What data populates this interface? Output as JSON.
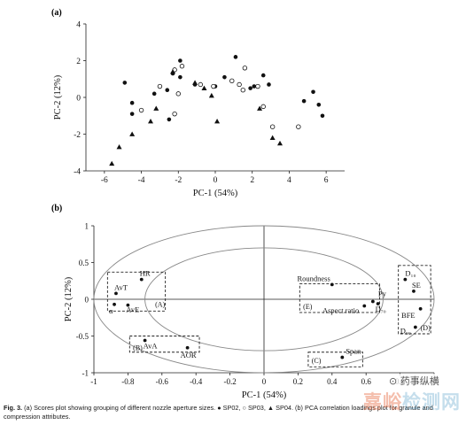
{
  "chart_data": [
    {
      "panel": "(a)",
      "type": "scatter",
      "xlabel": "PC-1 (54%)",
      "ylabel": "PC-2 (12%)",
      "xlim": [
        -7,
        7
      ],
      "ylim": [
        -4,
        4
      ],
      "xticks": [
        -6,
        -4,
        -2,
        0,
        2,
        4,
        6
      ],
      "yticks": [
        -4,
        -2,
        0,
        2,
        4
      ],
      "grid": false,
      "series": [
        {
          "name": "SP02",
          "marker": "filled-circle",
          "points": [
            [
              -4.9,
              0.8
            ],
            [
              -4.5,
              -0.9
            ],
            [
              -4.5,
              -0.3
            ],
            [
              -3.3,
              0.2
            ],
            [
              -2.6,
              0.4
            ],
            [
              -2.3,
              1.3
            ],
            [
              -2.5,
              -1.2
            ],
            [
              -1.9,
              2.0
            ],
            [
              -1.9,
              1.1
            ],
            [
              -1.1,
              0.7
            ],
            [
              0.0,
              0.6
            ],
            [
              0.5,
              1.1
            ],
            [
              1.1,
              2.2
            ],
            [
              1.9,
              0.5
            ],
            [
              2.1,
              0.6
            ],
            [
              2.6,
              1.2
            ],
            [
              2.9,
              0.7
            ],
            [
              4.8,
              -0.2
            ],
            [
              5.3,
              0.3
            ],
            [
              5.6,
              -0.4
            ],
            [
              5.8,
              -1.0
            ]
          ]
        },
        {
          "name": "SP03",
          "marker": "open-circle",
          "points": [
            [
              -4.0,
              -0.7
            ],
            [
              -3.0,
              0.6
            ],
            [
              -2.2,
              1.5
            ],
            [
              -1.8,
              1.7
            ],
            [
              -2.0,
              0.2
            ],
            [
              -2.2,
              -0.9
            ],
            [
              -0.8,
              0.7
            ],
            [
              -0.1,
              0.6
            ],
            [
              0.9,
              0.9
            ],
            [
              1.3,
              0.7
            ],
            [
              1.5,
              0.4
            ],
            [
              1.6,
              1.6
            ],
            [
              2.3,
              0.6
            ],
            [
              2.6,
              -0.5
            ],
            [
              3.1,
              -1.6
            ],
            [
              4.5,
              -1.6
            ]
          ]
        },
        {
          "name": "SP04",
          "marker": "filled-triangle",
          "points": [
            [
              -5.6,
              -3.6
            ],
            [
              -5.2,
              -2.7
            ],
            [
              -4.5,
              -2.0
            ],
            [
              -3.5,
              -1.3
            ],
            [
              -3.2,
              -0.6
            ],
            [
              -2.3,
              1.4
            ],
            [
              -1.1,
              0.8
            ],
            [
              -0.6,
              0.5
            ],
            [
              -0.2,
              0.1
            ],
            [
              0.1,
              -1.3
            ],
            [
              2.4,
              -0.6
            ],
            [
              3.1,
              -2.2
            ],
            [
              3.5,
              -2.5
            ]
          ]
        }
      ]
    },
    {
      "panel": "(b)",
      "type": "scatter",
      "xlabel": "PC-1 (54%)",
      "ylabel": "PC-2 (12%)",
      "xlim": [
        -1,
        1
      ],
      "ylim": [
        -1,
        1
      ],
      "xticks": [
        -1,
        -0.8,
        -0.6,
        -0.4,
        -0.2,
        0,
        0.2,
        0.4,
        0.6,
        0.8,
        1
      ],
      "yticks": [
        -1,
        -0.5,
        0,
        0.5,
        1
      ],
      "grid": false,
      "points": [
        {
          "label": "HR",
          "x": -0.72,
          "y": 0.27
        },
        {
          "label": "AvT",
          "x": -0.87,
          "y": 0.08
        },
        {
          "label": "α",
          "x": -0.88,
          "y": -0.07
        },
        {
          "label": "AvE",
          "x": -0.8,
          "y": -0.08
        },
        {
          "label": "AvA",
          "x": -0.7,
          "y": -0.56
        },
        {
          "label": "AOR",
          "x": -0.45,
          "y": -0.66
        },
        {
          "label": "Roundness",
          "x": 0.4,
          "y": 0.2
        },
        {
          "label": "Py",
          "x": 0.64,
          "y": -0.03
        },
        {
          "label": "Aspect ratio",
          "x": 0.59,
          "y": -0.09
        },
        {
          "label": "D₇₀",
          "x": 0.67,
          "y": -0.06
        },
        {
          "label": "D₁₀",
          "x": 0.83,
          "y": 0.27
        },
        {
          "label": "SE",
          "x": 0.88,
          "y": 0.11
        },
        {
          "label": "BFE",
          "x": 0.92,
          "y": -0.13
        },
        {
          "label": "D₉₀",
          "x": 0.89,
          "y": -0.38
        },
        {
          "label": "Span",
          "x": 0.46,
          "y": -0.79
        }
      ],
      "groups": [
        "(A)",
        "(B)",
        "(C)",
        "(D)",
        "(E)"
      ],
      "ellipse_radii": [
        1,
        0.7
      ]
    }
  ],
  "panel_labels": {
    "a": "(a)",
    "b": "(b)"
  },
  "caption": {
    "head": "Fig. 3.",
    "text": " (a) Scores plot showing grouping of different nozzle aperture sizes. ● SP02, ○ SP03, ▲ SP04. (b) PCA correlation loadings plot for granule and compression attributes."
  },
  "watermark": {
    "social": "药事纵横",
    "text_left": "嘉峪",
    "text_right": "检测网"
  }
}
